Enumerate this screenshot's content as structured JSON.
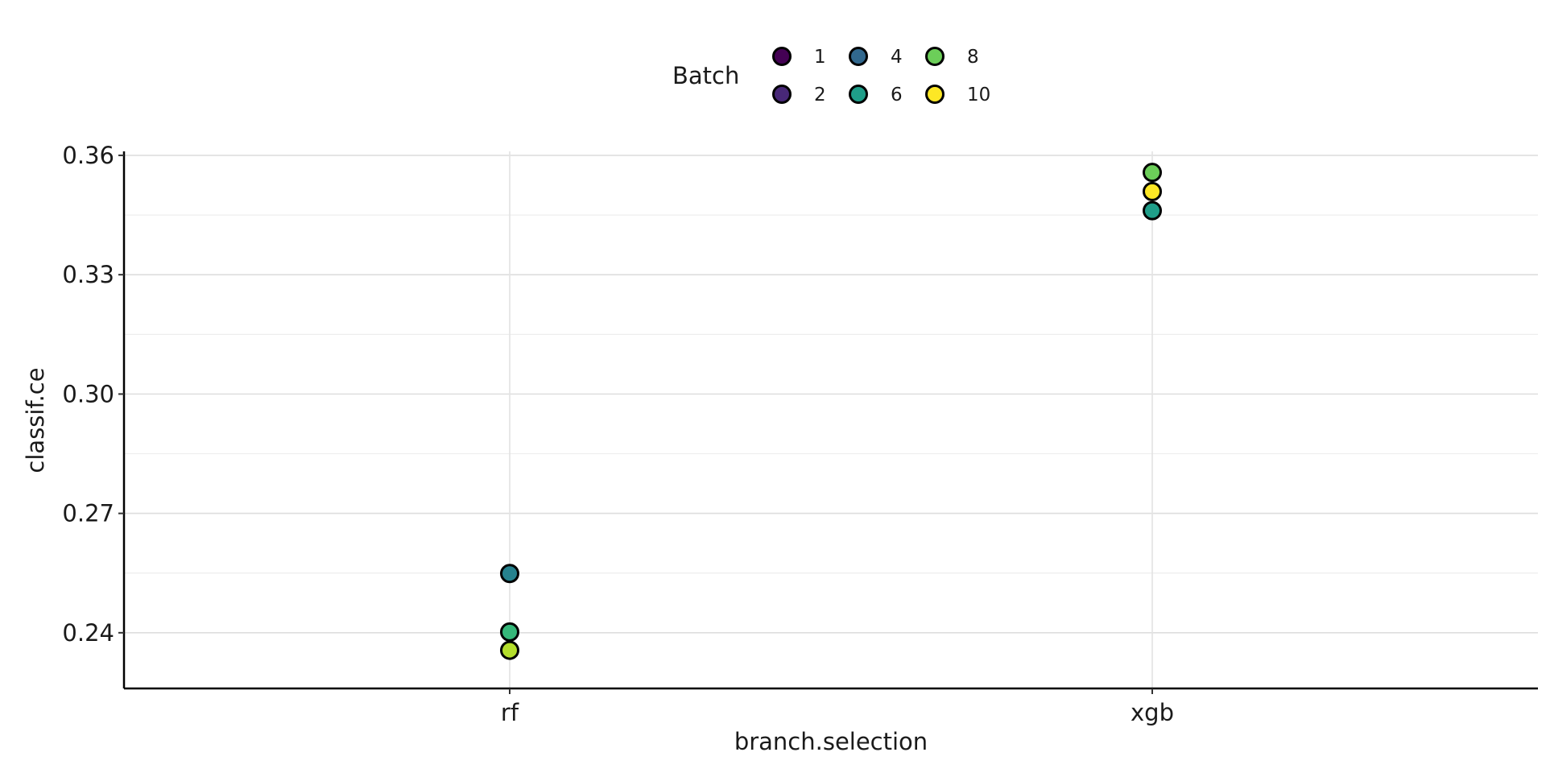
{
  "chart_data": {
    "type": "scatter",
    "xlabel": "branch.selection",
    "ylabel": "classif.ce",
    "categories": [
      "rf",
      "xgb"
    ],
    "ylim": [
      0.226,
      0.361
    ],
    "yticks": [
      "0.24",
      "0.27",
      "0.30",
      "0.33",
      "0.36"
    ],
    "ytick_values": [
      0.24,
      0.27,
      0.3,
      0.33,
      0.36
    ],
    "grid": true,
    "legend": {
      "title": "Batch",
      "placement": "top",
      "entries": [
        {
          "label": "1",
          "color": "#440154"
        },
        {
          "label": "2",
          "color": "#482878"
        },
        {
          "label": "4",
          "color": "#31688E"
        },
        {
          "label": "6",
          "color": "#1F9E89"
        },
        {
          "label": "8",
          "color": "#6CCE59"
        },
        {
          "label": "10",
          "color": "#FDE725"
        }
      ]
    },
    "points": [
      {
        "x": "rf",
        "y": 0.2549,
        "color": "#26828E"
      },
      {
        "x": "rf",
        "y": 0.2402,
        "color": "#35B779"
      },
      {
        "x": "rf",
        "y": 0.2356,
        "color": "#B4DE2C"
      },
      {
        "x": "xgb",
        "y": 0.3557,
        "color": "#6CCE59"
      },
      {
        "x": "xgb",
        "y": 0.3509,
        "color": "#FDE725"
      },
      {
        "x": "xgb",
        "y": 0.3461,
        "color": "#1F9E89"
      }
    ]
  }
}
